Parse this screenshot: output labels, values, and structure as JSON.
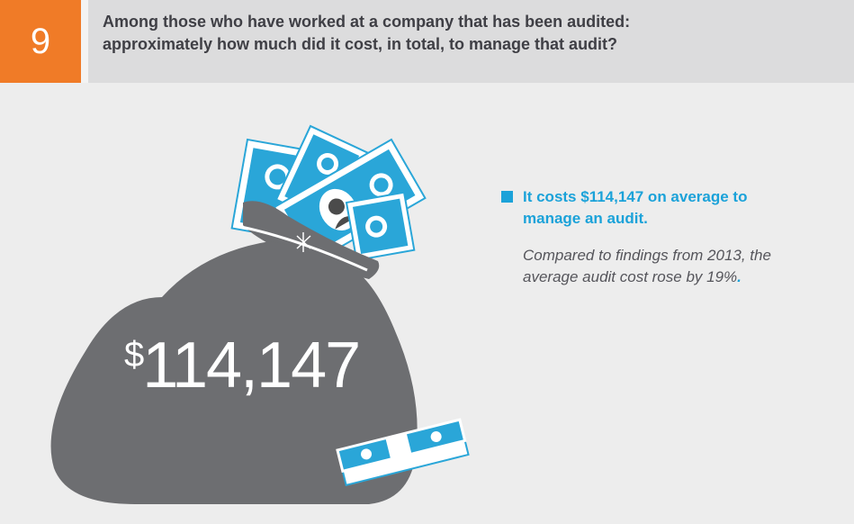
{
  "header": {
    "number": "9",
    "question_line1": "Among those who have worked at a company that has been audited:",
    "question_line2": "approximately how much did it cost, in total, to manage that audit?"
  },
  "bag": {
    "currency_symbol": "$",
    "amount": "114,147"
  },
  "highlight": {
    "line1": "It costs $114,147 on average to",
    "line2": "manage an audit."
  },
  "comparison": {
    "line1": "Compared to findings from 2013, the",
    "line2": "average audit cost rose by 19%",
    "period": "."
  },
  "colors": {
    "orange_accent": "#f07b27",
    "blue_accent": "#1ba2d9",
    "bag_gray": "#6d6e71"
  },
  "icons": [
    "money-bag-icon",
    "dollar-bills-icon",
    "money-stack-icon"
  ]
}
